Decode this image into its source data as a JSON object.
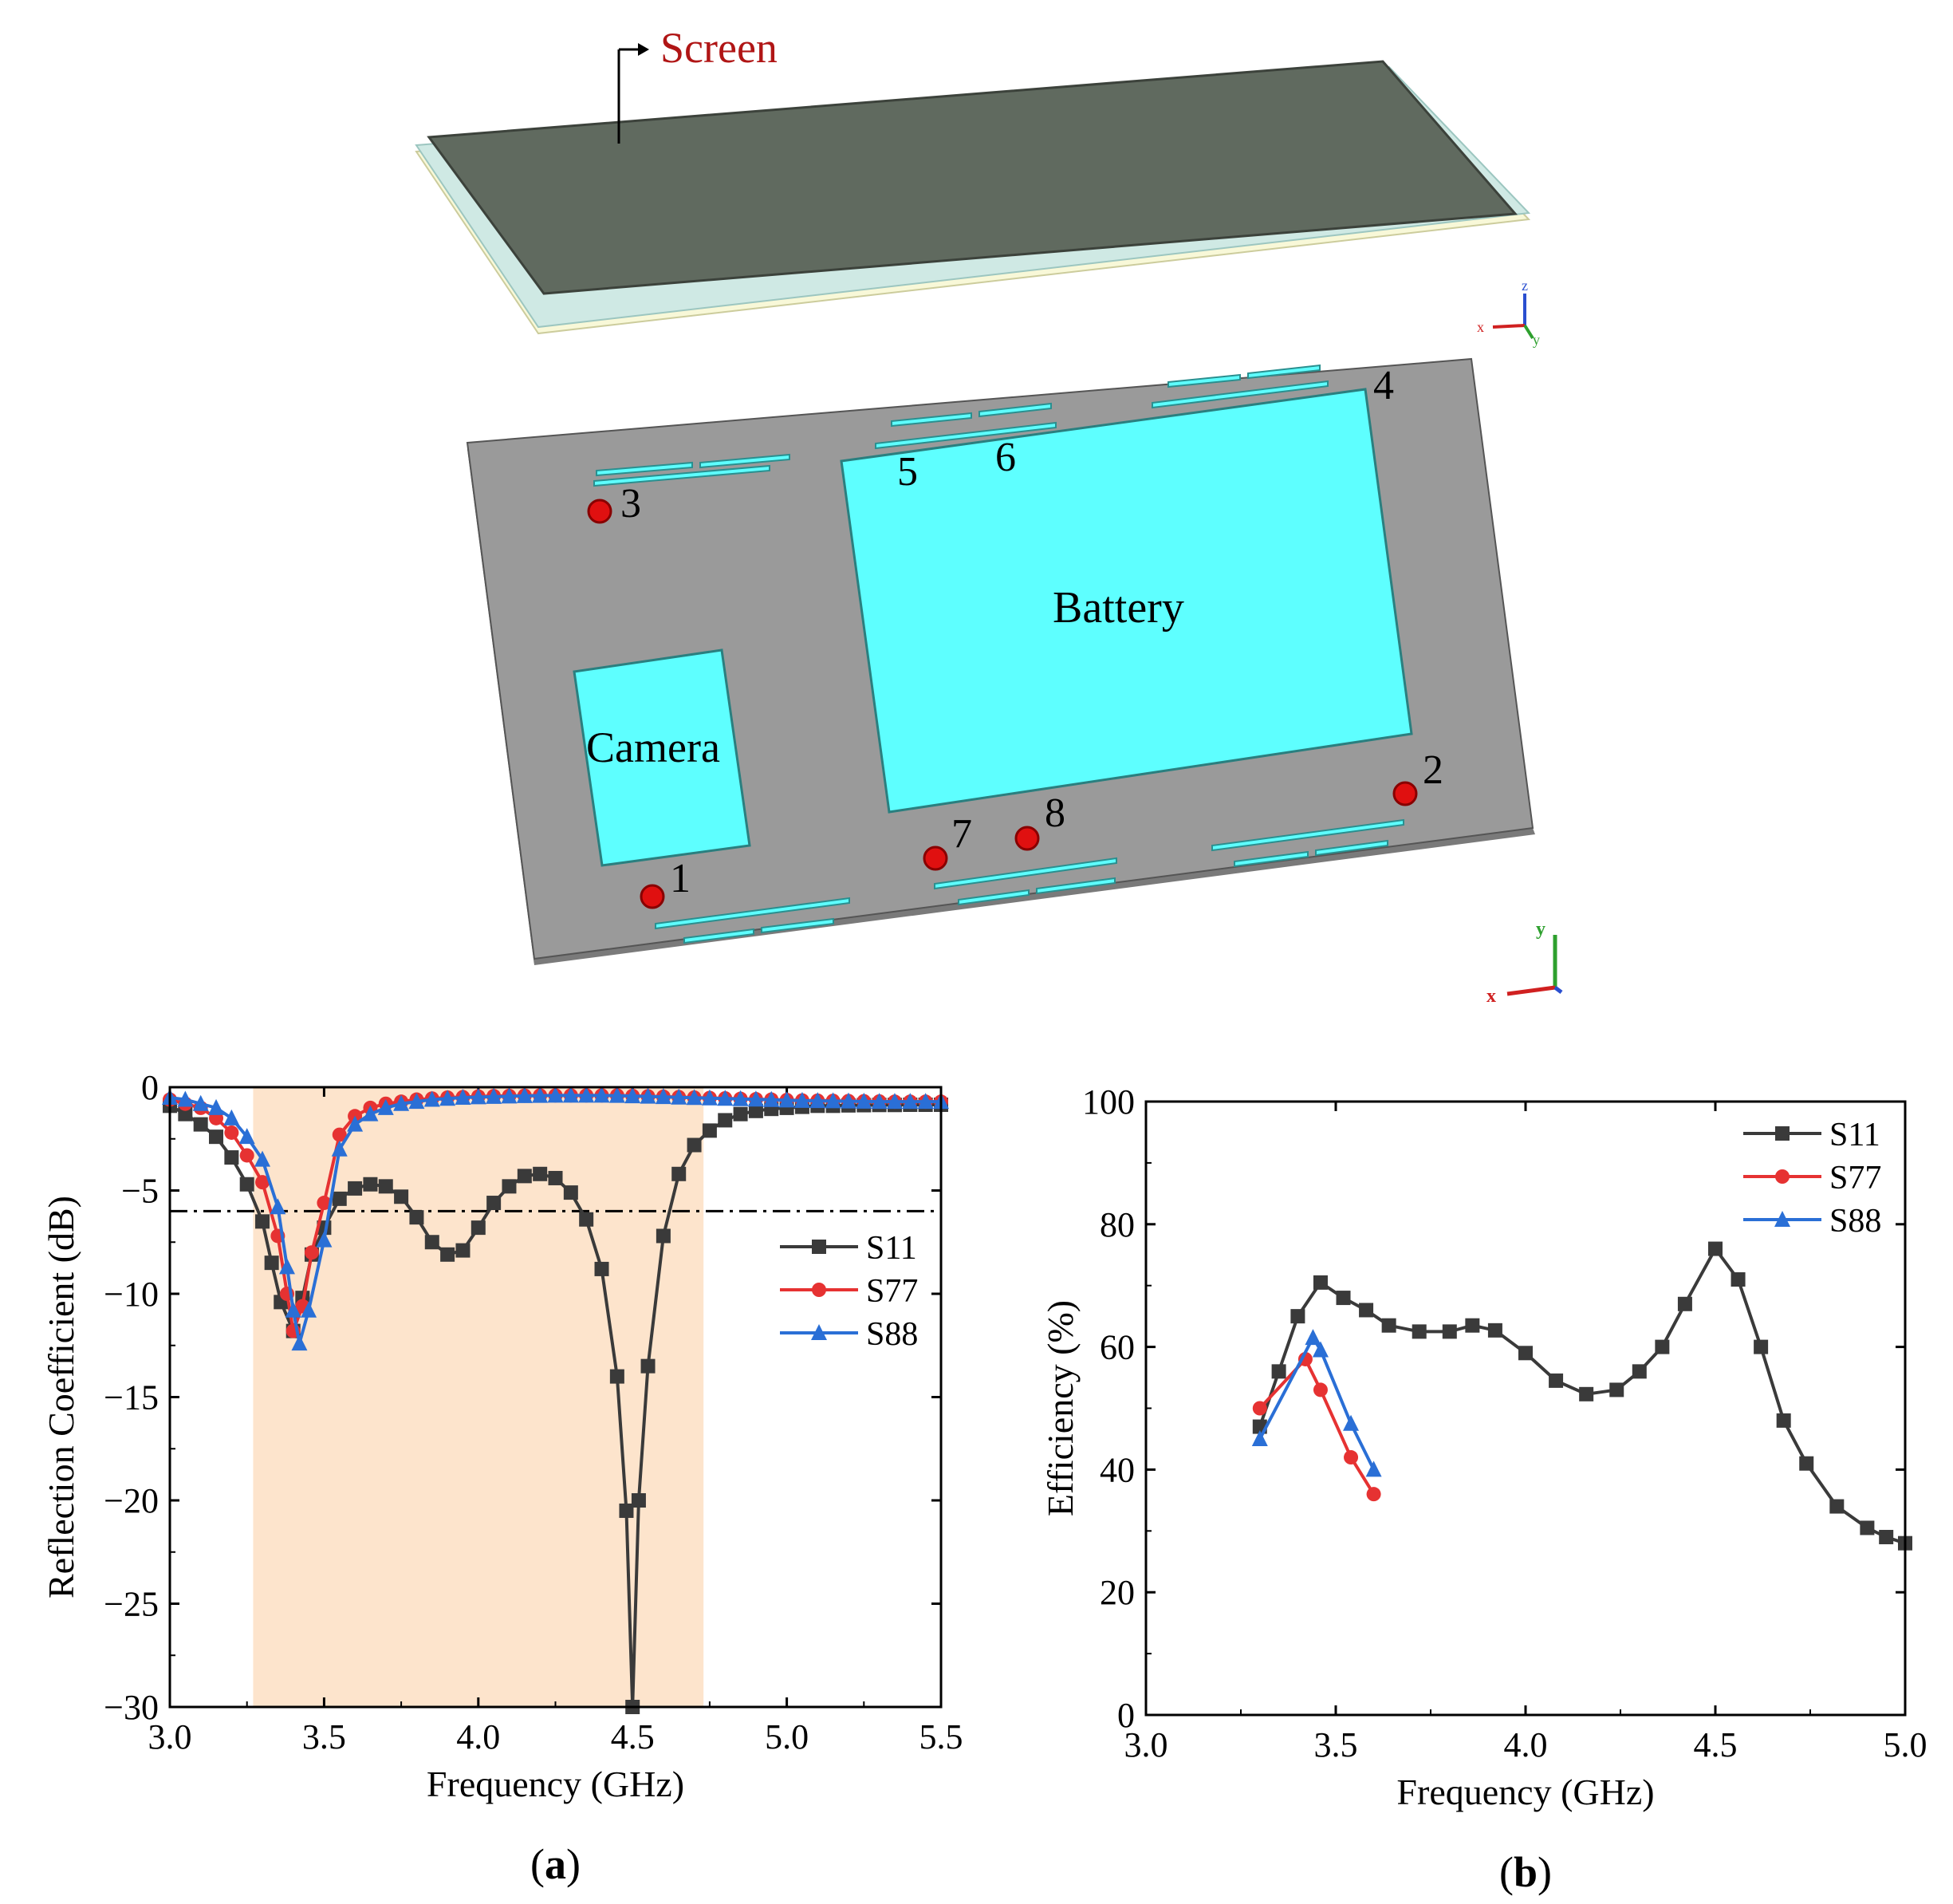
{
  "layout_model": {
    "screen_label": "Screen",
    "battery_label": "Battery",
    "camera_label": "Camera",
    "port_labels": [
      "1",
      "2",
      "3",
      "4",
      "5",
      "6",
      "7",
      "8"
    ],
    "axis_letters": {
      "x": "x",
      "y": "y",
      "z": "z"
    },
    "colors": {
      "screen_top": "#5f6a5e",
      "board": "#9a9a9a",
      "component": "#5effff",
      "port": "#e01010",
      "label_red": "#b01515"
    }
  },
  "chart_data": [
    {
      "type": "line",
      "panel_label": "(a)",
      "xlabel": "Frequency (GHz)",
      "ylabel": "Reflection Coefficient (dB)",
      "xlim": [
        3.0,
        5.5
      ],
      "ylim": [
        -30,
        0
      ],
      "xticks": [
        "3.0",
        "3.5",
        "4.0",
        "4.5",
        "5.0",
        "5.5"
      ],
      "yticks": [
        "0",
        "−5",
        "−10",
        "−15",
        "−20",
        "−25",
        "−30"
      ],
      "shaded_band": [
        3.27,
        4.73
      ],
      "reference_line": -6,
      "legend_position": "center-right",
      "series": [
        {
          "name": "S11",
          "color": "#3a3a3a",
          "marker": "square",
          "x": [
            3.0,
            3.05,
            3.1,
            3.15,
            3.2,
            3.25,
            3.3,
            3.33,
            3.36,
            3.4,
            3.43,
            3.46,
            3.5,
            3.55,
            3.6,
            3.65,
            3.7,
            3.75,
            3.8,
            3.85,
            3.9,
            3.95,
            4.0,
            4.05,
            4.1,
            4.15,
            4.2,
            4.25,
            4.3,
            4.35,
            4.4,
            4.45,
            4.48,
            4.5,
            4.52,
            4.55,
            4.6,
            4.65,
            4.7,
            4.75,
            4.8,
            4.85,
            4.9,
            4.95,
            5.0,
            5.05,
            5.1,
            5.15,
            5.2,
            5.25,
            5.3,
            5.35,
            5.4,
            5.45,
            5.5
          ],
          "y": [
            -0.9,
            -1.3,
            -1.8,
            -2.4,
            -3.4,
            -4.7,
            -6.5,
            -8.5,
            -10.4,
            -11.8,
            -10.2,
            -8.1,
            -6.8,
            -5.4,
            -4.9,
            -4.7,
            -4.8,
            -5.3,
            -6.3,
            -7.5,
            -8.1,
            -7.9,
            -6.8,
            -5.6,
            -4.8,
            -4.3,
            -4.2,
            -4.4,
            -5.1,
            -6.4,
            -8.8,
            -14.0,
            -20.5,
            -30.0,
            -20.0,
            -13.5,
            -7.2,
            -4.2,
            -2.8,
            -2.1,
            -1.6,
            -1.3,
            -1.15,
            -1.05,
            -1.0,
            -0.95,
            -0.9,
            -0.9,
            -0.88,
            -0.87,
            -0.86,
            -0.86,
            -0.85,
            -0.85,
            -0.85
          ]
        },
        {
          "name": "S77",
          "color": "#e63232",
          "marker": "circle",
          "x": [
            3.0,
            3.05,
            3.1,
            3.15,
            3.2,
            3.25,
            3.3,
            3.35,
            3.38,
            3.4,
            3.43,
            3.46,
            3.5,
            3.55,
            3.6,
            3.65,
            3.7,
            3.75,
            3.8,
            3.85,
            3.9,
            3.95,
            4.0,
            4.05,
            4.1,
            4.15,
            4.2,
            4.25,
            4.3,
            4.35,
            4.4,
            4.45,
            4.5,
            4.55,
            4.6,
            4.65,
            4.7,
            4.75,
            4.8,
            4.85,
            4.9,
            4.95,
            5.0,
            5.05,
            5.1,
            5.15,
            5.2,
            5.25,
            5.3,
            5.35,
            5.4,
            5.45,
            5.5
          ],
          "y": [
            -0.6,
            -0.8,
            -1.0,
            -1.5,
            -2.2,
            -3.3,
            -4.6,
            -7.2,
            -10.0,
            -11.8,
            -10.6,
            -8.0,
            -5.6,
            -2.3,
            -1.4,
            -1.0,
            -0.8,
            -0.7,
            -0.6,
            -0.55,
            -0.5,
            -0.48,
            -0.45,
            -0.43,
            -0.42,
            -0.41,
            -0.4,
            -0.4,
            -0.4,
            -0.4,
            -0.4,
            -0.4,
            -0.42,
            -0.44,
            -0.46,
            -0.48,
            -0.5,
            -0.52,
            -0.54,
            -0.56,
            -0.58,
            -0.6,
            -0.62,
            -0.64,
            -0.65,
            -0.66,
            -0.67,
            -0.68,
            -0.69,
            -0.7,
            -0.7,
            -0.7,
            -0.7
          ]
        },
        {
          "name": "S88",
          "color": "#2a6fd6",
          "marker": "triangle",
          "x": [
            3.0,
            3.05,
            3.1,
            3.15,
            3.2,
            3.25,
            3.3,
            3.35,
            3.38,
            3.4,
            3.42,
            3.45,
            3.5,
            3.55,
            3.6,
            3.65,
            3.7,
            3.75,
            3.8,
            3.85,
            3.9,
            3.95,
            4.0,
            4.05,
            4.1,
            4.15,
            4.2,
            4.25,
            4.3,
            4.35,
            4.4,
            4.45,
            4.5,
            4.55,
            4.6,
            4.65,
            4.7,
            4.75,
            4.8,
            4.85,
            4.9,
            4.95,
            5.0,
            5.05,
            5.1,
            5.15,
            5.2,
            5.25,
            5.3,
            5.35,
            5.4,
            5.45,
            5.5
          ],
          "y": [
            -0.5,
            -0.6,
            -0.8,
            -1.0,
            -1.5,
            -2.4,
            -3.5,
            -5.8,
            -8.7,
            -10.8,
            -12.4,
            -10.8,
            -7.4,
            -3.0,
            -1.8,
            -1.3,
            -1.0,
            -0.8,
            -0.7,
            -0.6,
            -0.55,
            -0.5,
            -0.48,
            -0.46,
            -0.44,
            -0.42,
            -0.41,
            -0.4,
            -0.4,
            -0.4,
            -0.4,
            -0.41,
            -0.43,
            -0.45,
            -0.47,
            -0.49,
            -0.51,
            -0.53,
            -0.55,
            -0.57,
            -0.59,
            -0.61,
            -0.63,
            -0.65,
            -0.66,
            -0.67,
            -0.68,
            -0.69,
            -0.7,
            -0.7,
            -0.7,
            -0.7,
            -0.7
          ]
        }
      ]
    },
    {
      "type": "line",
      "panel_label": "(b)",
      "xlabel": "Frequency (GHz)",
      "ylabel": "Efficiency (%)",
      "xlim": [
        3.0,
        5.0
      ],
      "ylim": [
        0,
        100
      ],
      "xticks": [
        "3.0",
        "3.5",
        "4.0",
        "4.5",
        "5.0"
      ],
      "yticks": [
        "0",
        "20",
        "40",
        "60",
        "80",
        "100"
      ],
      "legend_position": "top-right",
      "series": [
        {
          "name": "S11",
          "color": "#3a3a3a",
          "marker": "square",
          "x": [
            3.3,
            3.35,
            3.4,
            3.46,
            3.52,
            3.58,
            3.64,
            3.72,
            3.8,
            3.86,
            3.92,
            4.0,
            4.08,
            4.16,
            4.24,
            4.3,
            4.36,
            4.42,
            4.5,
            4.56,
            4.62,
            4.68,
            4.74,
            4.82,
            4.9,
            4.95,
            5.0
          ],
          "y": [
            47,
            56,
            65,
            70.5,
            68,
            66,
            63.5,
            62.5,
            62.5,
            63.5,
            62.7,
            59,
            54.5,
            52.3,
            53,
            56,
            60,
            67,
            76,
            71,
            60,
            48,
            41,
            34,
            30.5,
            29,
            28
          ]
        },
        {
          "name": "S77",
          "color": "#e63232",
          "marker": "circle",
          "x": [
            3.3,
            3.42,
            3.46,
            3.54,
            3.6
          ],
          "y": [
            50,
            58,
            53,
            42,
            36
          ]
        },
        {
          "name": "S88",
          "color": "#2a6fd6",
          "marker": "triangle",
          "x": [
            3.3,
            3.44,
            3.46,
            3.54,
            3.6
          ],
          "y": [
            45,
            61.5,
            59.5,
            47.5,
            40
          ]
        }
      ]
    }
  ]
}
